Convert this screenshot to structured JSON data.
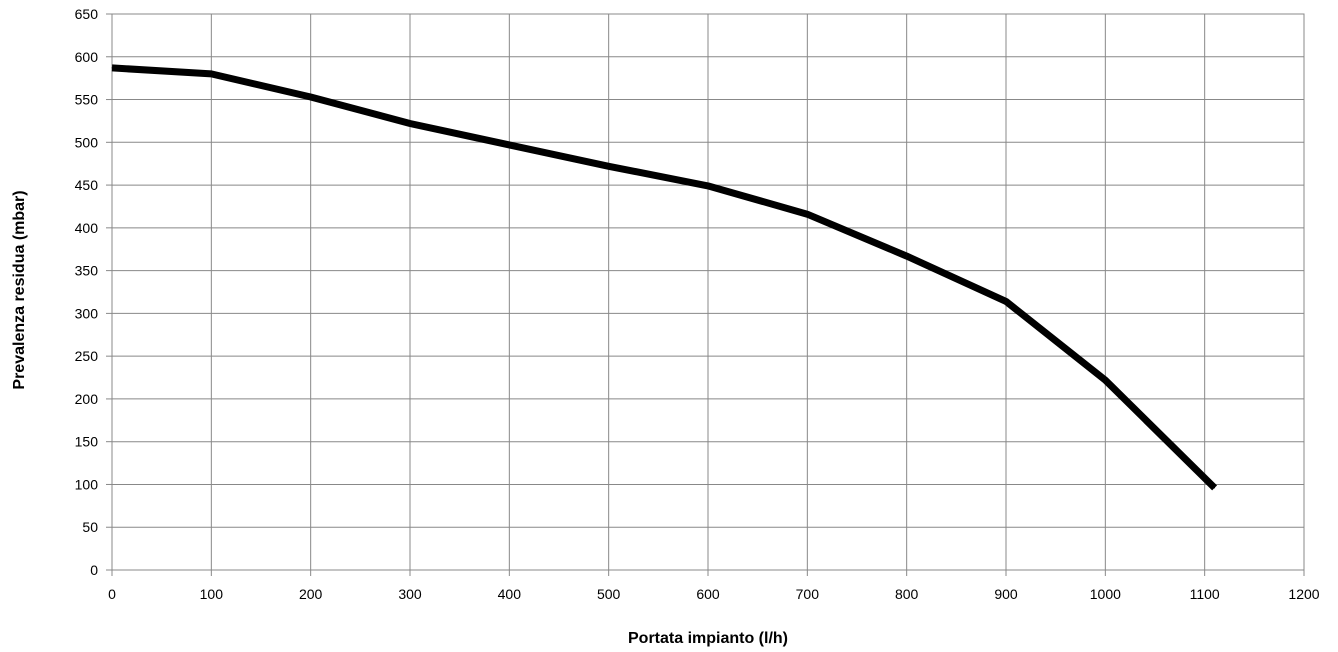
{
  "chart_data": {
    "type": "line",
    "title": "",
    "xlabel": "Portata impianto (l/h)",
    "ylabel": "Prevalenza residua (mbar)",
    "xlim": [
      0,
      1200
    ],
    "ylim": [
      0,
      650
    ],
    "x_ticks": [
      0,
      100,
      200,
      300,
      400,
      500,
      600,
      700,
      800,
      900,
      1000,
      1100,
      1200
    ],
    "y_ticks": [
      0,
      50,
      100,
      150,
      200,
      250,
      300,
      350,
      400,
      450,
      500,
      550,
      600,
      650
    ],
    "grid": true,
    "legend": "none",
    "series": [
      {
        "color": "#000000",
        "x": [
          0,
          100,
          200,
          300,
          400,
          500,
          600,
          700,
          800,
          900,
          1000,
          1110
        ],
        "y": [
          587,
          580,
          553,
          522,
          497,
          472,
          449,
          416,
          367,
          314,
          222,
          96
        ]
      }
    ]
  }
}
